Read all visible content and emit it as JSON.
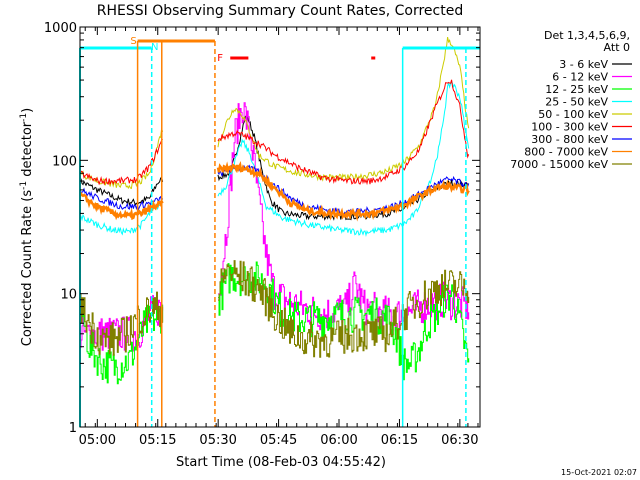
{
  "chart_data": {
    "type": "line",
    "title": "RHESSI Observing Summary Count Rates, Corrected",
    "xlabel": "Start Time (08-Feb-03 04:55:42)",
    "ylabel": "Corrected Count Rate (s",
    "ylabel_sup": "-1",
    "ylabel_tail": " detector",
    "ylabel_sup2": "-1",
    "ylabel_end": ")",
    "footer": "15-Oct-2021 02:07",
    "y_scale": "log",
    "ylim": [
      1,
      1000
    ],
    "xlim_minutes": [
      55.7,
      155.0
    ],
    "x_ticks": [
      {
        "label": "05:00",
        "m": 60
      },
      {
        "label": "05:15",
        "m": 75
      },
      {
        "label": "05:30",
        "m": 90
      },
      {
        "label": "05:45",
        "m": 105
      },
      {
        "label": "06:00",
        "m": 120
      },
      {
        "label": "06:15",
        "m": 135
      },
      {
        "label": "06:30",
        "m": 150
      }
    ],
    "y_ticks": [
      {
        "label": "1",
        "v": 1
      },
      {
        "label": "10",
        "v": 10
      },
      {
        "label": "100",
        "v": 100
      },
      {
        "label": "1000",
        "v": 1000
      }
    ],
    "legend": {
      "header1": "Det 1,3,4,5,6,9,",
      "header2": "Att 0",
      "placement": "right"
    },
    "series": [
      {
        "name": "3 - 6 keV",
        "color": "#000000",
        "points": [
          [
            55.7,
            70
          ],
          [
            60,
            60
          ],
          [
            66,
            50
          ],
          [
            70,
            48
          ],
          [
            73,
            52
          ],
          [
            74,
            60
          ],
          [
            75,
            68
          ],
          [
            76,
            72
          ],
          [
            90,
            75
          ],
          [
            93,
            80
          ],
          [
            95,
            130
          ],
          [
            97,
            225
          ],
          [
            99,
            150
          ],
          [
            101,
            80
          ],
          [
            103,
            50
          ],
          [
            106,
            40
          ],
          [
            112,
            38
          ],
          [
            120,
            38
          ],
          [
            126,
            38
          ],
          [
            132,
            40
          ],
          [
            136,
            43
          ],
          [
            140,
            52
          ],
          [
            144,
            62
          ],
          [
            148,
            68
          ],
          [
            152,
            65
          ]
        ]
      },
      {
        "name": "6 - 12 keV",
        "color": "#ff00ff",
        "points": [
          [
            55.7,
            5
          ],
          [
            70,
            5
          ],
          [
            73,
            7
          ],
          [
            76,
            8
          ],
          [
            90,
            10
          ],
          [
            92,
            30
          ],
          [
            94,
            150
          ],
          [
            96,
            260
          ],
          [
            98,
            150
          ],
          [
            100,
            50
          ],
          [
            102,
            18
          ],
          [
            104,
            10
          ],
          [
            110,
            8
          ],
          [
            116,
            7
          ],
          [
            122,
            8
          ],
          [
            124,
            12
          ],
          [
            126,
            8
          ],
          [
            132,
            7
          ],
          [
            136,
            7
          ],
          [
            140,
            8
          ],
          [
            146,
            9
          ],
          [
            152,
            8
          ]
        ]
      },
      {
        "name": "12 - 25 keV",
        "color": "#00ff00",
        "points": [
          [
            55.7,
            8
          ],
          [
            58,
            4
          ],
          [
            61,
            3
          ],
          [
            64,
            2.8
          ],
          [
            68,
            3.2
          ],
          [
            72,
            6
          ],
          [
            76,
            7
          ],
          [
            90,
            9
          ],
          [
            93,
            14
          ],
          [
            96,
            13
          ],
          [
            99,
            13
          ],
          [
            102,
            12
          ],
          [
            104,
            9
          ],
          [
            106,
            7
          ],
          [
            110,
            6.5
          ],
          [
            116,
            6.5
          ],
          [
            122,
            7
          ],
          [
            128,
            7
          ],
          [
            132,
            6.5
          ],
          [
            134,
            5
          ],
          [
            136,
            3
          ],
          [
            138,
            3
          ],
          [
            140,
            4
          ],
          [
            142,
            6
          ],
          [
            144,
            7
          ],
          [
            146,
            9
          ],
          [
            148,
            10
          ],
          [
            150,
            6
          ],
          [
            152,
            3
          ]
        ]
      },
      {
        "name": "25 - 50 keV",
        "color": "#00ffff",
        "points": [
          [
            55.7,
            38
          ],
          [
            60,
            33
          ],
          [
            64,
            30
          ],
          [
            68,
            29
          ],
          [
            71,
            33
          ],
          [
            73,
            40
          ],
          [
            75,
            45
          ],
          [
            76,
            48
          ],
          [
            90,
            55
          ],
          [
            92,
            65
          ],
          [
            94,
            95
          ],
          [
            96,
            140
          ],
          [
            98,
            110
          ],
          [
            100,
            70
          ],
          [
            102,
            45
          ],
          [
            106,
            37
          ],
          [
            112,
            33
          ],
          [
            120,
            30
          ],
          [
            126,
            29
          ],
          [
            132,
            30
          ],
          [
            136,
            33
          ],
          [
            139,
            40
          ],
          [
            141,
            55
          ],
          [
            143,
            75
          ],
          [
            145,
            130
          ],
          [
            147,
            350
          ],
          [
            148,
            390
          ],
          [
            150,
            300
          ],
          [
            152,
            130
          ]
        ]
      },
      {
        "name": "50 - 100 keV",
        "color": "#cccc00",
        "points": [
          [
            55.7,
            80
          ],
          [
            60,
            70
          ],
          [
            66,
            64
          ],
          [
            70,
            66
          ],
          [
            73,
            80
          ],
          [
            75,
            130
          ],
          [
            76,
            170
          ],
          [
            90,
            130
          ],
          [
            92,
            190
          ],
          [
            94,
            250
          ],
          [
            96,
            220
          ],
          [
            98,
            160
          ],
          [
            100,
            110
          ],
          [
            104,
            90
          ],
          [
            110,
            80
          ],
          [
            116,
            75
          ],
          [
            122,
            74
          ],
          [
            128,
            78
          ],
          [
            132,
            83
          ],
          [
            136,
            95
          ],
          [
            140,
            130
          ],
          [
            144,
            260
          ],
          [
            147,
            820
          ],
          [
            148,
            750
          ],
          [
            150,
            500
          ],
          [
            152,
            180
          ]
        ]
      },
      {
        "name": "100 - 300 keV",
        "color": "#ff0000",
        "points": [
          [
            55.7,
            80
          ],
          [
            60,
            70
          ],
          [
            66,
            70
          ],
          [
            70,
            72
          ],
          [
            73,
            90
          ],
          [
            75,
            120
          ],
          [
            76,
            140
          ],
          [
            90,
            145
          ],
          [
            94,
            160
          ],
          [
            96,
            155
          ],
          [
            100,
            135
          ],
          [
            104,
            110
          ],
          [
            110,
            88
          ],
          [
            116,
            74
          ],
          [
            122,
            70
          ],
          [
            128,
            70
          ],
          [
            132,
            76
          ],
          [
            136,
            88
          ],
          [
            140,
            120
          ],
          [
            144,
            250
          ],
          [
            147,
            400
          ],
          [
            148,
            390
          ],
          [
            150,
            250
          ],
          [
            152,
            110
          ]
        ]
      },
      {
        "name": "300 - 800 keV",
        "color": "#0000ff",
        "points": [
          [
            55.7,
            60
          ],
          [
            60,
            52
          ],
          [
            66,
            45
          ],
          [
            70,
            45
          ],
          [
            73,
            48
          ],
          [
            75,
            50
          ],
          [
            76,
            52
          ],
          [
            90,
            78
          ],
          [
            94,
            88
          ],
          [
            97,
            88
          ],
          [
            100,
            82
          ],
          [
            104,
            65
          ],
          [
            108,
            52
          ],
          [
            112,
            45
          ],
          [
            118,
            42
          ],
          [
            124,
            41
          ],
          [
            128,
            42
          ],
          [
            132,
            44
          ],
          [
            136,
            48
          ],
          [
            140,
            56
          ],
          [
            144,
            66
          ],
          [
            147,
            72
          ],
          [
            149,
            70
          ],
          [
            152,
            64
          ]
        ]
      },
      {
        "name": "800 - 7000 keV",
        "color": "#ff8000",
        "points": [
          [
            55.7,
            55
          ],
          [
            60,
            45
          ],
          [
            64,
            40
          ],
          [
            68,
            38
          ],
          [
            71,
            40
          ],
          [
            74,
            45
          ],
          [
            76,
            47
          ],
          [
            90,
            85
          ],
          [
            93,
            88
          ],
          [
            96,
            88
          ],
          [
            100,
            80
          ],
          [
            104,
            62
          ],
          [
            108,
            48
          ],
          [
            112,
            42
          ],
          [
            118,
            40
          ],
          [
            124,
            40
          ],
          [
            128,
            40
          ],
          [
            132,
            42
          ],
          [
            136,
            46
          ],
          [
            140,
            54
          ],
          [
            144,
            62
          ],
          [
            147,
            64
          ],
          [
            149,
            62
          ],
          [
            152,
            60
          ]
        ]
      },
      {
        "name": "7000 - 15000 keV",
        "color": "#808000",
        "points": [
          [
            55.7,
            8
          ],
          [
            58,
            6
          ],
          [
            61,
            4.5
          ],
          [
            64,
            4.5
          ],
          [
            67,
            5
          ],
          [
            70,
            6.5
          ],
          [
            73,
            7.5
          ],
          [
            76,
            7.8
          ],
          [
            90,
            10
          ],
          [
            92,
            15
          ],
          [
            94,
            14
          ],
          [
            96,
            13
          ],
          [
            98,
            12
          ],
          [
            100,
            11
          ],
          [
            102,
            9
          ],
          [
            104,
            7
          ],
          [
            108,
            5
          ],
          [
            112,
            4.5
          ],
          [
            118,
            4.5
          ],
          [
            124,
            5
          ],
          [
            128,
            5
          ],
          [
            132,
            5
          ],
          [
            136,
            7
          ],
          [
            140,
            9
          ],
          [
            144,
            11
          ],
          [
            148,
            11.5
          ],
          [
            152,
            11
          ]
        ]
      }
    ],
    "annotations": [
      {
        "label": "S",
        "color": "#ff8000"
      },
      {
        "label": "N",
        "color": "#00ffff"
      },
      {
        "label": "F",
        "color": "#ff0000"
      }
    ]
  }
}
